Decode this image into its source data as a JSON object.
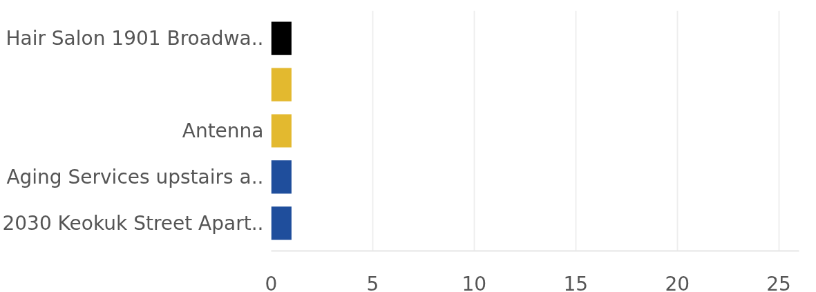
{
  "chart_data": {
    "type": "bar",
    "orientation": "horizontal",
    "categories": [
      "Hair Salon 1901 Broadwa..",
      null,
      "Antenna",
      "Aging Services upstairs a..",
      "2030 Keokuk Street Apart.."
    ],
    "values": [
      1,
      1,
      1,
      1,
      1
    ],
    "colors": [
      "#000000",
      "#e3b92f",
      "#e3b92f",
      "#1f4e9c",
      "#1f4e9c"
    ],
    "xlim": [
      0,
      26
    ],
    "xticks": [
      0,
      5,
      10,
      15,
      20,
      25
    ],
    "grid": "x"
  }
}
